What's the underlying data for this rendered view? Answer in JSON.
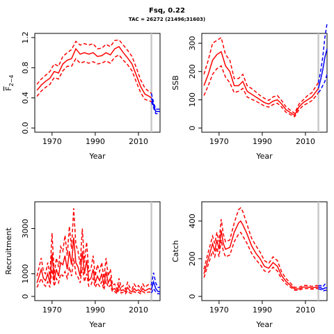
{
  "figure": {
    "title": "Fsq, 0.22",
    "subtitle": "TAC = 26272 (21496;31603)"
  },
  "colors": {
    "estimate": "#ff0000",
    "forecast": "#0000ff",
    "current_year_line": "#c8c8c8"
  },
  "chart_data": [
    {
      "id": "fbar",
      "type": "line",
      "xlabel": "Year",
      "ylabel": "F2-4",
      "ylabel_main": "F",
      "ylabel_sub": "2−4",
      "xlim": [
        1962,
        2020
      ],
      "ylim": [
        0,
        1.2
      ],
      "xticks": [
        1970,
        1990,
        2010
      ],
      "yticks": [
        0.0,
        0.4,
        0.8,
        1.2
      ],
      "ytick_labels": [
        "0.0",
        "0.4",
        "0.8",
        "1.2"
      ],
      "ref_line_x": 2016,
      "estimate": {
        "x": [
          1963,
          1965,
          1967,
          1969,
          1971,
          1973,
          1975,
          1977,
          1979,
          1981,
          1983,
          1985,
          1987,
          1989,
          1991,
          1993,
          1995,
          1997,
          1999,
          2001,
          2003,
          2005,
          2007,
          2009,
          2011,
          2013,
          2015,
          2016
        ],
        "y": [
          0.5,
          0.57,
          0.62,
          0.66,
          0.75,
          0.73,
          0.85,
          0.9,
          0.92,
          1.05,
          0.98,
          1.0,
          0.98,
          1.0,
          0.95,
          0.96,
          1.0,
          0.97,
          1.05,
          1.08,
          1.0,
          0.93,
          0.85,
          0.7,
          0.55,
          0.45,
          0.42,
          0.4
        ],
        "lower": [
          0.42,
          0.49,
          0.54,
          0.58,
          0.67,
          0.65,
          0.76,
          0.82,
          0.82,
          0.92,
          0.86,
          0.88,
          0.86,
          0.88,
          0.85,
          0.86,
          0.89,
          0.86,
          0.94,
          0.97,
          0.9,
          0.84,
          0.76,
          0.61,
          0.47,
          0.38,
          0.36,
          0.35
        ],
        "upper": [
          0.58,
          0.65,
          0.7,
          0.75,
          0.85,
          0.82,
          0.95,
          1.0,
          1.04,
          1.15,
          1.1,
          1.12,
          1.1,
          1.12,
          1.05,
          1.06,
          1.11,
          1.08,
          1.16,
          1.17,
          1.1,
          1.03,
          0.95,
          0.8,
          0.64,
          0.53,
          0.48,
          0.46
        ]
      },
      "forecast": {
        "x": [
          2016,
          2017,
          2018,
          2019,
          2020
        ],
        "y": [
          0.4,
          0.3,
          0.22,
          0.22,
          0.22
        ],
        "lower": [
          0.35,
          0.27,
          0.19,
          0.19,
          0.19
        ],
        "upper": [
          0.46,
          0.34,
          0.25,
          0.25,
          0.25
        ]
      }
    },
    {
      "id": "ssb",
      "type": "line",
      "xlabel": "Year",
      "ylabel": "SSB",
      "xlim": [
        1962,
        2020
      ],
      "ylim": [
        0,
        320
      ],
      "xticks": [
        1970,
        1990,
        2010
      ],
      "yticks": [
        0,
        100,
        200,
        300
      ],
      "ytick_labels": [
        "0",
        "100",
        "200",
        "300"
      ],
      "ref_line_x": 2016,
      "estimate": {
        "x": [
          1963,
          1965,
          1967,
          1969,
          1971,
          1973,
          1975,
          1977,
          1979,
          1981,
          1983,
          1985,
          1987,
          1989,
          1991,
          1993,
          1995,
          1997,
          1999,
          2001,
          2003,
          2005,
          2007,
          2009,
          2011,
          2013,
          2015,
          2016
        ],
        "y": [
          150,
          190,
          240,
          260,
          270,
          220,
          200,
          150,
          150,
          165,
          130,
          120,
          110,
          100,
          90,
          85,
          95,
          100,
          85,
          65,
          55,
          45,
          75,
          90,
          100,
          110,
          130,
          140
        ],
        "lower": [
          115,
          150,
          190,
          210,
          220,
          180,
          160,
          125,
          130,
          140,
          110,
          102,
          95,
          87,
          78,
          74,
          83,
          88,
          74,
          56,
          48,
          40,
          65,
          80,
          88,
          97,
          115,
          125
        ],
        "upper": [
          190,
          240,
          300,
          310,
          320,
          260,
          240,
          175,
          175,
          190,
          150,
          140,
          128,
          115,
          105,
          98,
          110,
          115,
          97,
          75,
          63,
          52,
          85,
          100,
          115,
          125,
          150,
          160
        ]
      },
      "forecast": {
        "x": [
          2016,
          2017,
          2018,
          2019,
          2020
        ],
        "y": [
          140,
          170,
          205,
          250,
          280
        ],
        "lower": [
          125,
          135,
          150,
          165,
          190
        ],
        "upper": [
          160,
          200,
          250,
          320,
          370
        ]
      }
    },
    {
      "id": "recruitment",
      "type": "line",
      "xlabel": "Year",
      "ylabel": "Recruitment",
      "xlim": [
        1962,
        2020
      ],
      "ylim": [
        0,
        4000
      ],
      "xticks": [
        1970,
        1990,
        2010
      ],
      "yticks": [
        0,
        1000,
        3000
      ],
      "ytick_labels": [
        "0",
        "1000",
        "3000"
      ],
      "ref_line_x": 2016,
      "estimate": {
        "x": [
          1963,
          1964,
          1965,
          1966,
          1967,
          1968,
          1969,
          1970,
          1971,
          1972,
          1973,
          1974,
          1975,
          1976,
          1977,
          1978,
          1979,
          1980,
          1981,
          1982,
          1983,
          1984,
          1985,
          1986,
          1987,
          1988,
          1989,
          1990,
          1991,
          1992,
          1993,
          1994,
          1995,
          1996,
          1997,
          1998,
          1999,
          2000,
          2001,
          2002,
          2003,
          2004,
          2005,
          2006,
          2007,
          2008,
          2009,
          2010,
          2011,
          2012,
          2013,
          2014,
          2015,
          2016
        ],
        "y": [
          600,
          900,
          1200,
          800,
          700,
          1000,
          600,
          1900,
          700,
          1200,
          900,
          1500,
          1400,
          1800,
          1200,
          2000,
          1400,
          2600,
          1500,
          1300,
          900,
          2000,
          1000,
          1600,
          700,
          800,
          1200,
          600,
          900,
          700,
          1000,
          500,
          1100,
          600,
          800,
          300,
          350,
          200,
          500,
          250,
          300,
          200,
          400,
          250,
          200,
          350,
          250,
          300,
          200,
          350,
          250,
          300,
          350,
          300
        ],
        "lower": [
          400,
          600,
          800,
          550,
          450,
          650,
          400,
          1200,
          450,
          800,
          600,
          1000,
          900,
          1100,
          800,
          1300,
          900,
          1700,
          1000,
          850,
          600,
          1300,
          650,
          1000,
          450,
          500,
          800,
          400,
          600,
          450,
          650,
          300,
          700,
          400,
          500,
          200,
          220,
          120,
          300,
          150,
          180,
          120,
          250,
          150,
          120,
          220,
          150,
          180,
          120,
          220,
          150,
          180,
          200,
          150
        ],
        "upper": [
          900,
          1300,
          1700,
          1100,
          1000,
          1500,
          900,
          2800,
          1000,
          1700,
          1300,
          2200,
          2000,
          2700,
          1800,
          3100,
          2100,
          3900,
          2300,
          2000,
          1400,
          3000,
          1500,
          2400,
          1100,
          1200,
          1800,
          900,
          1400,
          1100,
          1500,
          800,
          1700,
          900,
          1200,
          500,
          550,
          320,
          800,
          400,
          480,
          320,
          620,
          400,
          320,
          550,
          400,
          480,
          320,
          550,
          400,
          480,
          550,
          500
        ]
      },
      "forecast": {
        "x": [
          2016,
          2017,
          2018,
          2019,
          2020
        ],
        "y": [
          300,
          650,
          350,
          220,
          220
        ],
        "lower": [
          150,
          350,
          200,
          120,
          120
        ],
        "upper": [
          500,
          1050,
          600,
          400,
          400
        ]
      }
    },
    {
      "id": "catch",
      "type": "line",
      "xlabel": "Year",
      "ylabel": "Catch",
      "xlim": [
        1962,
        2020
      ],
      "ylim": [
        0,
        480
      ],
      "xticks": [
        1970,
        1990,
        2010
      ],
      "yticks": [
        0,
        200,
        400
      ],
      "ytick_labels": [
        "0",
        "200",
        "400"
      ],
      "ref_line_x": 2016,
      "estimate": {
        "x": [
          1963,
          1965,
          1967,
          1968,
          1969,
          1970,
          1971,
          1972,
          1973,
          1975,
          1977,
          1979,
          1980,
          1981,
          1983,
          1985,
          1987,
          1989,
          1991,
          1993,
          1995,
          1997,
          1999,
          2001,
          2003,
          2005,
          2007,
          2009,
          2011,
          2013,
          2015,
          2016
        ],
        "y": [
          120,
          200,
          280,
          240,
          300,
          250,
          350,
          280,
          250,
          260,
          340,
          390,
          400,
          380,
          330,
          270,
          230,
          200,
          160,
          150,
          180,
          160,
          110,
          80,
          60,
          40,
          40,
          50,
          50,
          45,
          50,
          48
        ],
        "lower": [
          100,
          170,
          240,
          210,
          260,
          210,
          300,
          240,
          210,
          220,
          290,
          330,
          340,
          320,
          280,
          230,
          195,
          170,
          135,
          128,
          155,
          135,
          92,
          67,
          50,
          33,
          33,
          42,
          42,
          38,
          43,
          40
        ],
        "upper": [
          145,
          235,
          320,
          280,
          340,
          290,
          410,
          330,
          290,
          300,
          390,
          460,
          470,
          450,
          380,
          310,
          270,
          235,
          190,
          175,
          210,
          190,
          130,
          95,
          72,
          48,
          48,
          58,
          58,
          53,
          58,
          56
        ]
      },
      "forecast": {
        "x": [
          2016,
          2017,
          2018,
          2019,
          2020
        ],
        "y": [
          48,
          48,
          38,
          45,
          45
        ],
        "lower": [
          40,
          38,
          28,
          32,
          32
        ],
        "upper": [
          56,
          58,
          50,
          65,
          65
        ]
      }
    }
  ]
}
